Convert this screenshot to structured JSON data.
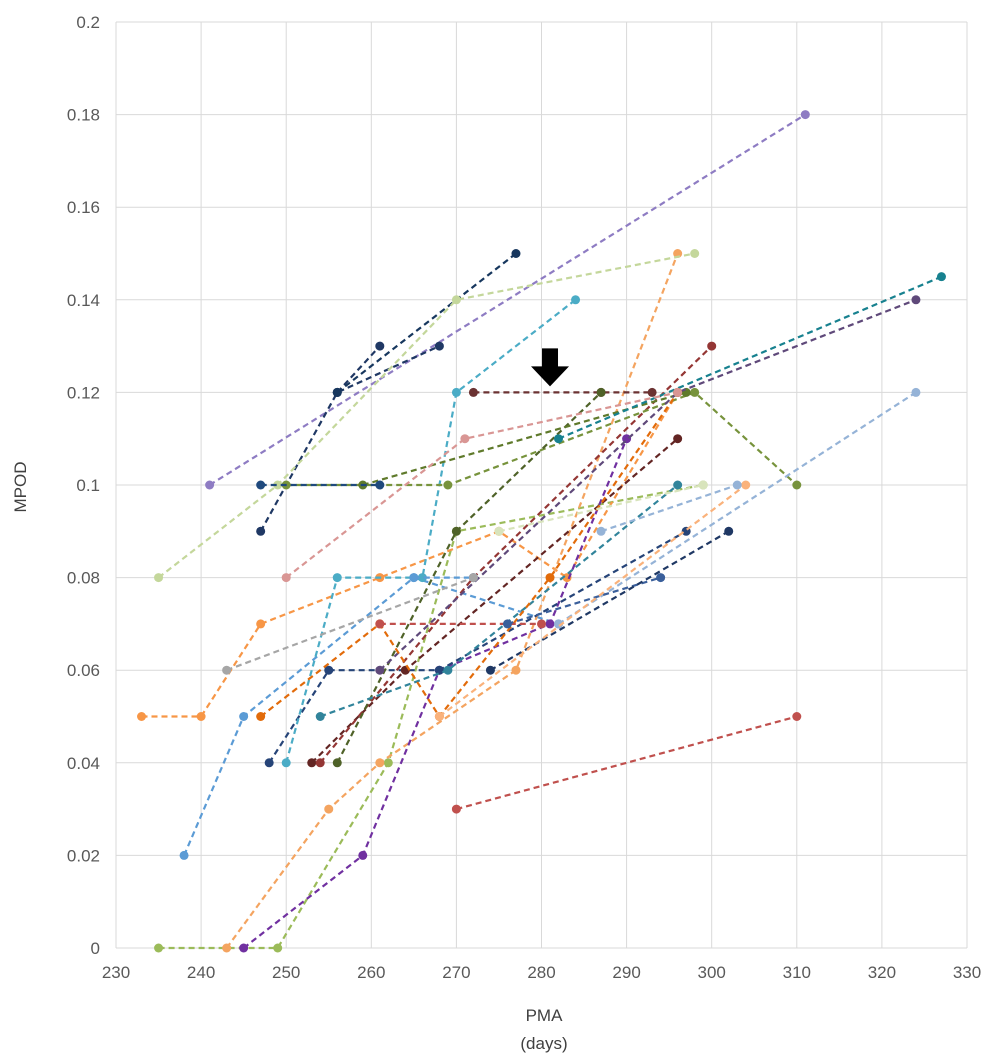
{
  "chart_data": {
    "type": "scatter",
    "title": "",
    "xlabel": "PMA",
    "xlabel_unit": "(days)",
    "ylabel": "MPOD",
    "xlim": [
      230,
      330
    ],
    "ylim": [
      0,
      0.2
    ],
    "x_ticks": [
      "230",
      "240",
      "250",
      "260",
      "270",
      "280",
      "290",
      "300",
      "310",
      "320",
      "330"
    ],
    "y_ticks": [
      "0",
      "0.02",
      "0.04",
      "0.06",
      "0.08",
      "0.1",
      "0.12",
      "0.14",
      "0.16",
      "0.18",
      "0.2"
    ],
    "grid": true,
    "legend": "none",
    "line_style": "dashed",
    "annotation": {
      "type": "arrow",
      "points_to": [
        281,
        0.12
      ]
    },
    "series": [
      {
        "color": "#8e7cc3",
        "points": [
          [
            241,
            0.1
          ],
          [
            311,
            0.18
          ]
        ]
      },
      {
        "color": "#5b9bd5",
        "points": [
          [
            238,
            0.02
          ],
          [
            245,
            0.05
          ],
          [
            265,
            0.08
          ],
          [
            282,
            0.07
          ]
        ]
      },
      {
        "color": "#c0504d",
        "points": [
          [
            270,
            0.03
          ],
          [
            310,
            0.05
          ]
        ]
      },
      {
        "color": "#9bbb59",
        "points": [
          [
            235,
            0
          ],
          [
            249,
            0
          ],
          [
            262,
            0.04
          ],
          [
            270,
            0.09
          ],
          [
            299,
            0.1
          ]
        ]
      },
      {
        "color": "#f79646",
        "points": [
          [
            233,
            0.05
          ],
          [
            240,
            0.05
          ],
          [
            247,
            0.07
          ],
          [
            261,
            0.08
          ],
          [
            275,
            0.09
          ],
          [
            283,
            0.08
          ],
          [
            296,
            0.12
          ]
        ]
      },
      {
        "color": "#f4a460",
        "points": [
          [
            243,
            0
          ],
          [
            255,
            0.03
          ],
          [
            261,
            0.04
          ],
          [
            277,
            0.06
          ],
          [
            296,
            0.15
          ]
        ]
      },
      {
        "color": "#7030a0",
        "points": [
          [
            245,
            0
          ],
          [
            259,
            0.02
          ],
          [
            268,
            0.06
          ],
          [
            281,
            0.07
          ],
          [
            290,
            0.11
          ]
        ]
      },
      {
        "color": "#264478",
        "points": [
          [
            248,
            0.04
          ],
          [
            255,
            0.06
          ],
          [
            268,
            0.06
          ],
          [
            297,
            0.09
          ]
        ]
      },
      {
        "color": "#4bacc6",
        "points": [
          [
            250,
            0.04
          ],
          [
            256,
            0.08
          ],
          [
            266,
            0.08
          ],
          [
            270,
            0.12
          ],
          [
            284,
            0.14
          ]
        ]
      },
      {
        "color": "#1f3864",
        "points": [
          [
            247,
            0.09
          ],
          [
            256,
            0.12
          ],
          [
            268,
            0.13
          ]
        ]
      },
      {
        "color": "#203864",
        "points": [
          [
            256,
            0.12
          ],
          [
            261,
            0.13
          ]
        ]
      },
      {
        "color": "#17375e",
        "points": [
          [
            256,
            0.12
          ],
          [
            277,
            0.15
          ]
        ]
      },
      {
        "color": "#c4d79b",
        "points": [
          [
            235,
            0.08
          ],
          [
            249,
            0.1
          ],
          [
            270,
            0.14
          ],
          [
            298,
            0.15
          ]
        ]
      },
      {
        "color": "#6b3232",
        "points": [
          [
            272,
            0.12
          ],
          [
            287,
            0.12
          ],
          [
            293,
            0.12
          ]
        ]
      },
      {
        "color": "#632523",
        "points": [
          [
            253,
            0.04
          ],
          [
            264,
            0.06
          ],
          [
            296,
            0.11
          ]
        ]
      },
      {
        "color": "#943634",
        "points": [
          [
            254,
            0.04
          ],
          [
            272,
            0.08
          ],
          [
            300,
            0.13
          ]
        ]
      },
      {
        "color": "#77933c",
        "points": [
          [
            250,
            0.1
          ],
          [
            269,
            0.1
          ],
          [
            298,
            0.12
          ],
          [
            310,
            0.1
          ]
        ]
      },
      {
        "color": "#4f6228",
        "points": [
          [
            256,
            0.04
          ],
          [
            270,
            0.09
          ],
          [
            287,
            0.12
          ]
        ]
      },
      {
        "color": "#5f7a2b",
        "points": [
          [
            259,
            0.1
          ],
          [
            297,
            0.12
          ]
        ]
      },
      {
        "color": "#1f497d",
        "points": [
          [
            247,
            0.1
          ],
          [
            261,
            0.1
          ]
        ]
      },
      {
        "color": "#31849b",
        "points": [
          [
            254,
            0.05
          ],
          [
            269,
            0.06
          ],
          [
            296,
            0.1
          ]
        ]
      },
      {
        "color": "#17818f",
        "points": [
          [
            282,
            0.11
          ],
          [
            327,
            0.145
          ]
        ]
      },
      {
        "color": "#5f497a",
        "points": [
          [
            261,
            0.06
          ],
          [
            296,
            0.12
          ],
          [
            324,
            0.14
          ]
        ]
      },
      {
        "color": "#95b3d7",
        "points": [
          [
            282,
            0.07
          ],
          [
            324,
            0.12
          ]
        ]
      },
      {
        "color": "#e26b0a",
        "points": [
          [
            247,
            0.05
          ],
          [
            261,
            0.07
          ],
          [
            268,
            0.05
          ],
          [
            281,
            0.08
          ],
          [
            296,
            0.12
          ]
        ]
      },
      {
        "color": "#d99694",
        "points": [
          [
            250,
            0.08
          ],
          [
            271,
            0.11
          ],
          [
            296,
            0.12
          ]
        ]
      },
      {
        "color": "#c0504d",
        "points": [
          [
            261,
            0.07
          ],
          [
            280,
            0.07
          ]
        ]
      },
      {
        "color": "#3a5f9b",
        "points": [
          [
            276,
            0.07
          ],
          [
            294,
            0.08
          ]
        ]
      },
      {
        "color": "#5b9bd5",
        "points": [
          [
            265,
            0.08
          ],
          [
            272,
            0.08
          ]
        ]
      },
      {
        "color": "#1f3864",
        "points": [
          [
            274,
            0.06
          ],
          [
            302,
            0.09
          ]
        ]
      },
      {
        "color": "#fab27b",
        "points": [
          [
            268,
            0.05
          ],
          [
            304,
            0.1
          ]
        ]
      },
      {
        "color": "#d8e4bc",
        "points": [
          [
            275,
            0.09
          ],
          [
            299,
            0.1
          ]
        ]
      },
      {
        "color": "#95b3d7",
        "points": [
          [
            287,
            0.09
          ],
          [
            303,
            0.1
          ]
        ]
      },
      {
        "color": "#a6a6a6",
        "points": [
          [
            243,
            0.06
          ],
          [
            272,
            0.08
          ]
        ]
      }
    ]
  }
}
